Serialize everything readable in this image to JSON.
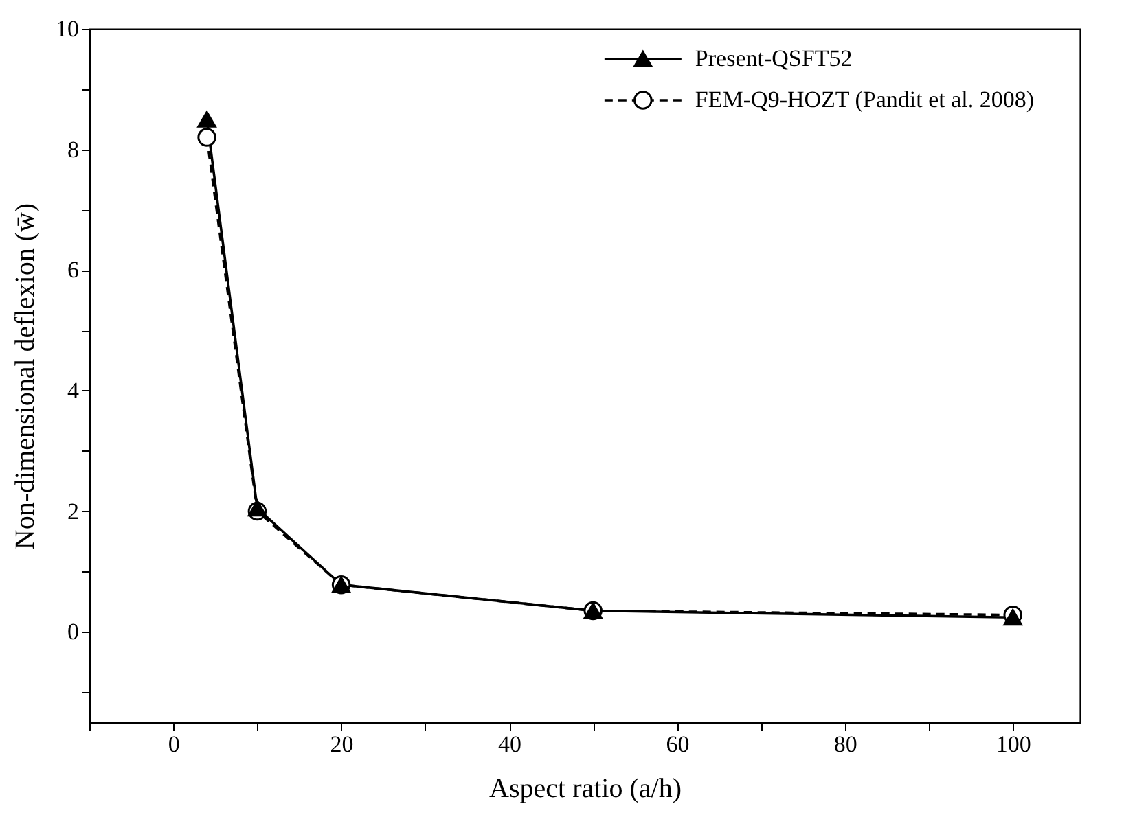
{
  "chart_data": {
    "type": "line",
    "xlabel": "Aspect ratio (a/h)",
    "ylabel": "Non-dimensional deflexion (w̄)",
    "x": [
      4,
      10,
      20,
      50,
      100
    ],
    "series": [
      {
        "name": "Present-QSFT52",
        "color": "#000000",
        "marker": "triangle",
        "line_style": "solid",
        "values": [
          8.5,
          2.05,
          0.78,
          0.35,
          0.24
        ]
      },
      {
        "name": "FEM-Q9-HOZT (Pandit et al. 2008)",
        "color": "#000000",
        "marker": "circle",
        "line_style": "dashed",
        "values": [
          8.2,
          2.0,
          0.78,
          0.35,
          0.28
        ]
      }
    ],
    "xlim": [
      -10,
      108
    ],
    "ylim": [
      -1.5,
      10
    ],
    "xticks": [
      {
        "value": -10,
        "label": null
      },
      0,
      {
        "value": 10,
        "label": null
      },
      20,
      {
        "value": 30,
        "label": null
      },
      40,
      {
        "value": 50,
        "label": null
      },
      60,
      {
        "value": 70,
        "label": null
      },
      80,
      {
        "value": 90,
        "label": null
      },
      100
    ],
    "yticks": [
      {
        "value": -1,
        "label": null
      },
      0,
      {
        "value": 1,
        "label": null
      },
      2,
      {
        "value": 3,
        "label": null
      },
      4,
      {
        "value": 5,
        "label": null
      },
      6,
      {
        "value": 7,
        "label": null
      },
      8,
      {
        "value": 9,
        "label": null
      },
      10
    ],
    "grid": false,
    "legend": "top right"
  }
}
